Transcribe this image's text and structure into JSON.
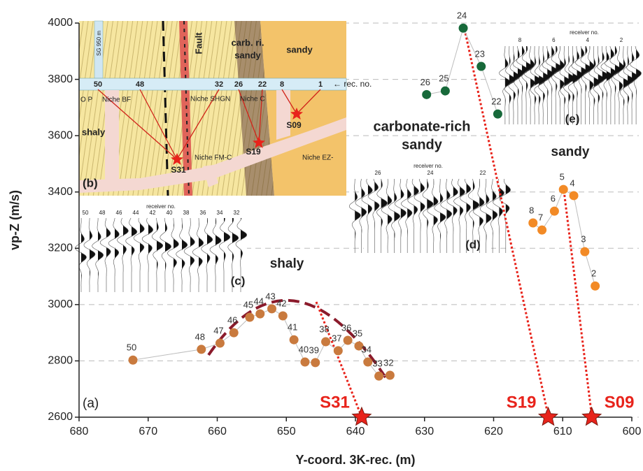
{
  "chart_data": {
    "type": "scatter",
    "xlabel": "Y-coord. 3K-rec. (m)",
    "ylabel": "vp-Z (m/s)",
    "xlim": [
      680,
      600
    ],
    "xticks": [
      680,
      670,
      660,
      650,
      640,
      630,
      620,
      610,
      600
    ],
    "ylim": [
      2600,
      4000
    ],
    "yticks": [
      2600,
      2800,
      3000,
      3200,
      3400,
      3600,
      3800,
      4000
    ],
    "grid": true,
    "line_color": "#bdbdbd",
    "series": [
      {
        "color": "#c97a3e",
        "x": [
          672.2,
          662.3,
          659.6,
          657.6,
          655.3,
          653.8,
          652.1,
          650.5,
          648.9,
          647.3,
          645.8,
          644.3,
          642.5,
          641.1,
          639.5,
          638.2,
          636.6,
          635.0
        ],
        "values": [
          2803,
          2841,
          2863,
          2900,
          2955,
          2967,
          2985,
          2960,
          2875,
          2796,
          2794,
          2868,
          2836,
          2873,
          2853,
          2796,
          2746,
          2749
        ],
        "labels": [
          "50",
          "48",
          "47",
          "46",
          "45",
          "44",
          "43",
          "42",
          "41",
          "40",
          "39",
          "38",
          "37",
          "36",
          "35",
          "34",
          "33",
          "32"
        ]
      },
      {
        "color": "#17693a",
        "x": [
          629.7,
          627.0,
          624.4,
          621.8,
          619.4
        ],
        "values": [
          3746,
          3759,
          3982,
          3846,
          3677
        ],
        "labels": [
          "26",
          "25",
          "24",
          "23",
          "22"
        ]
      },
      {
        "color": "#f28a26",
        "x": [
          614.3,
          613.0,
          611.2,
          609.9,
          608.4,
          606.8,
          605.3
        ],
        "values": [
          3290,
          3265,
          3332,
          3409,
          3387,
          3188,
          3066
        ],
        "labels": [
          "8",
          "7",
          "6",
          "5",
          "4",
          "3",
          "2"
        ]
      }
    ],
    "sources": {
      "color": "#e8231b",
      "x": [
        639.1,
        612.1,
        605.8
      ],
      "values": [
        2600,
        2600,
        2600
      ],
      "labels": [
        "S31",
        "S19",
        "S09"
      ]
    },
    "annotations": {
      "shaly": "shaly",
      "carbonate": [
        "carbonate-rich",
        "sandy"
      ],
      "sandy": "sandy",
      "panel": "(a)"
    }
  },
  "insets": {
    "map": {
      "panel": "(b)",
      "fault": "Fault",
      "carb": [
        "carb. ri.",
        "sandy"
      ],
      "sandy": "sandy",
      "shaly": "shaly",
      "rec_arrow": "← rec. no.",
      "rec_numbers": [
        "50",
        "48",
        "32",
        "26",
        "22",
        "8",
        "1"
      ],
      "niches": [
        "O P",
        "Niche BF",
        "Niche SHGN",
        "Niche C",
        "Niche FM-C",
        "Niche EZ-"
      ],
      "sg": "SG 950 m",
      "sources": [
        "S31",
        "S19",
        "S09"
      ]
    },
    "seismo_c": {
      "panel": "(c)",
      "axis_label": "receiver no.",
      "receivers": [
        "50",
        "48",
        "46",
        "44",
        "42",
        "40",
        "38",
        "36",
        "34",
        "32"
      ]
    },
    "seismo_d": {
      "panel": "(d)",
      "axis_label": "receiver no.",
      "receivers": [
        "26",
        "24",
        "22"
      ]
    },
    "seismo_e": {
      "panel": "(e)",
      "axis_label": "receiver no.",
      "receivers": [
        "8",
        "6",
        "4",
        "2"
      ]
    }
  }
}
